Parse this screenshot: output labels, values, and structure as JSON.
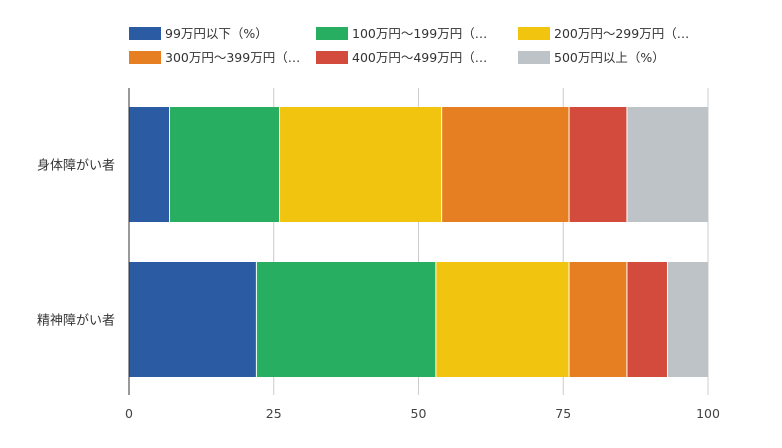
{
  "chart_data": {
    "type": "bar",
    "orientation": "horizontal",
    "stacked": true,
    "categories": [
      "身体障がい者",
      "精神障がい者"
    ],
    "series": [
      {
        "name": "99万円以下（%）",
        "values": [
          7,
          22
        ],
        "color": "#2a5ba3"
      },
      {
        "name": "100万円～199万円（…",
        "values": [
          19,
          31
        ],
        "color": "#27ae60"
      },
      {
        "name": "200万円～299万円（…",
        "values": [
          28,
          23
        ],
        "color": "#f1c40f"
      },
      {
        "name": "300万円～399万円（…",
        "values": [
          22,
          10
        ],
        "color": "#e67e22"
      },
      {
        "name": "400万円～499万円（…",
        "values": [
          10,
          7
        ],
        "color": "#d24b3c"
      },
      {
        "name": "500万円以上（%）",
        "values": [
          14,
          7
        ],
        "color": "#bdc3c7"
      }
    ],
    "xlim": [
      0,
      100
    ],
    "xticks": [
      "0",
      "25",
      "50",
      "75",
      "100"
    ],
    "xtick_values": [
      0,
      25,
      50,
      75,
      100
    ],
    "grid": true,
    "legend_position": "top"
  }
}
